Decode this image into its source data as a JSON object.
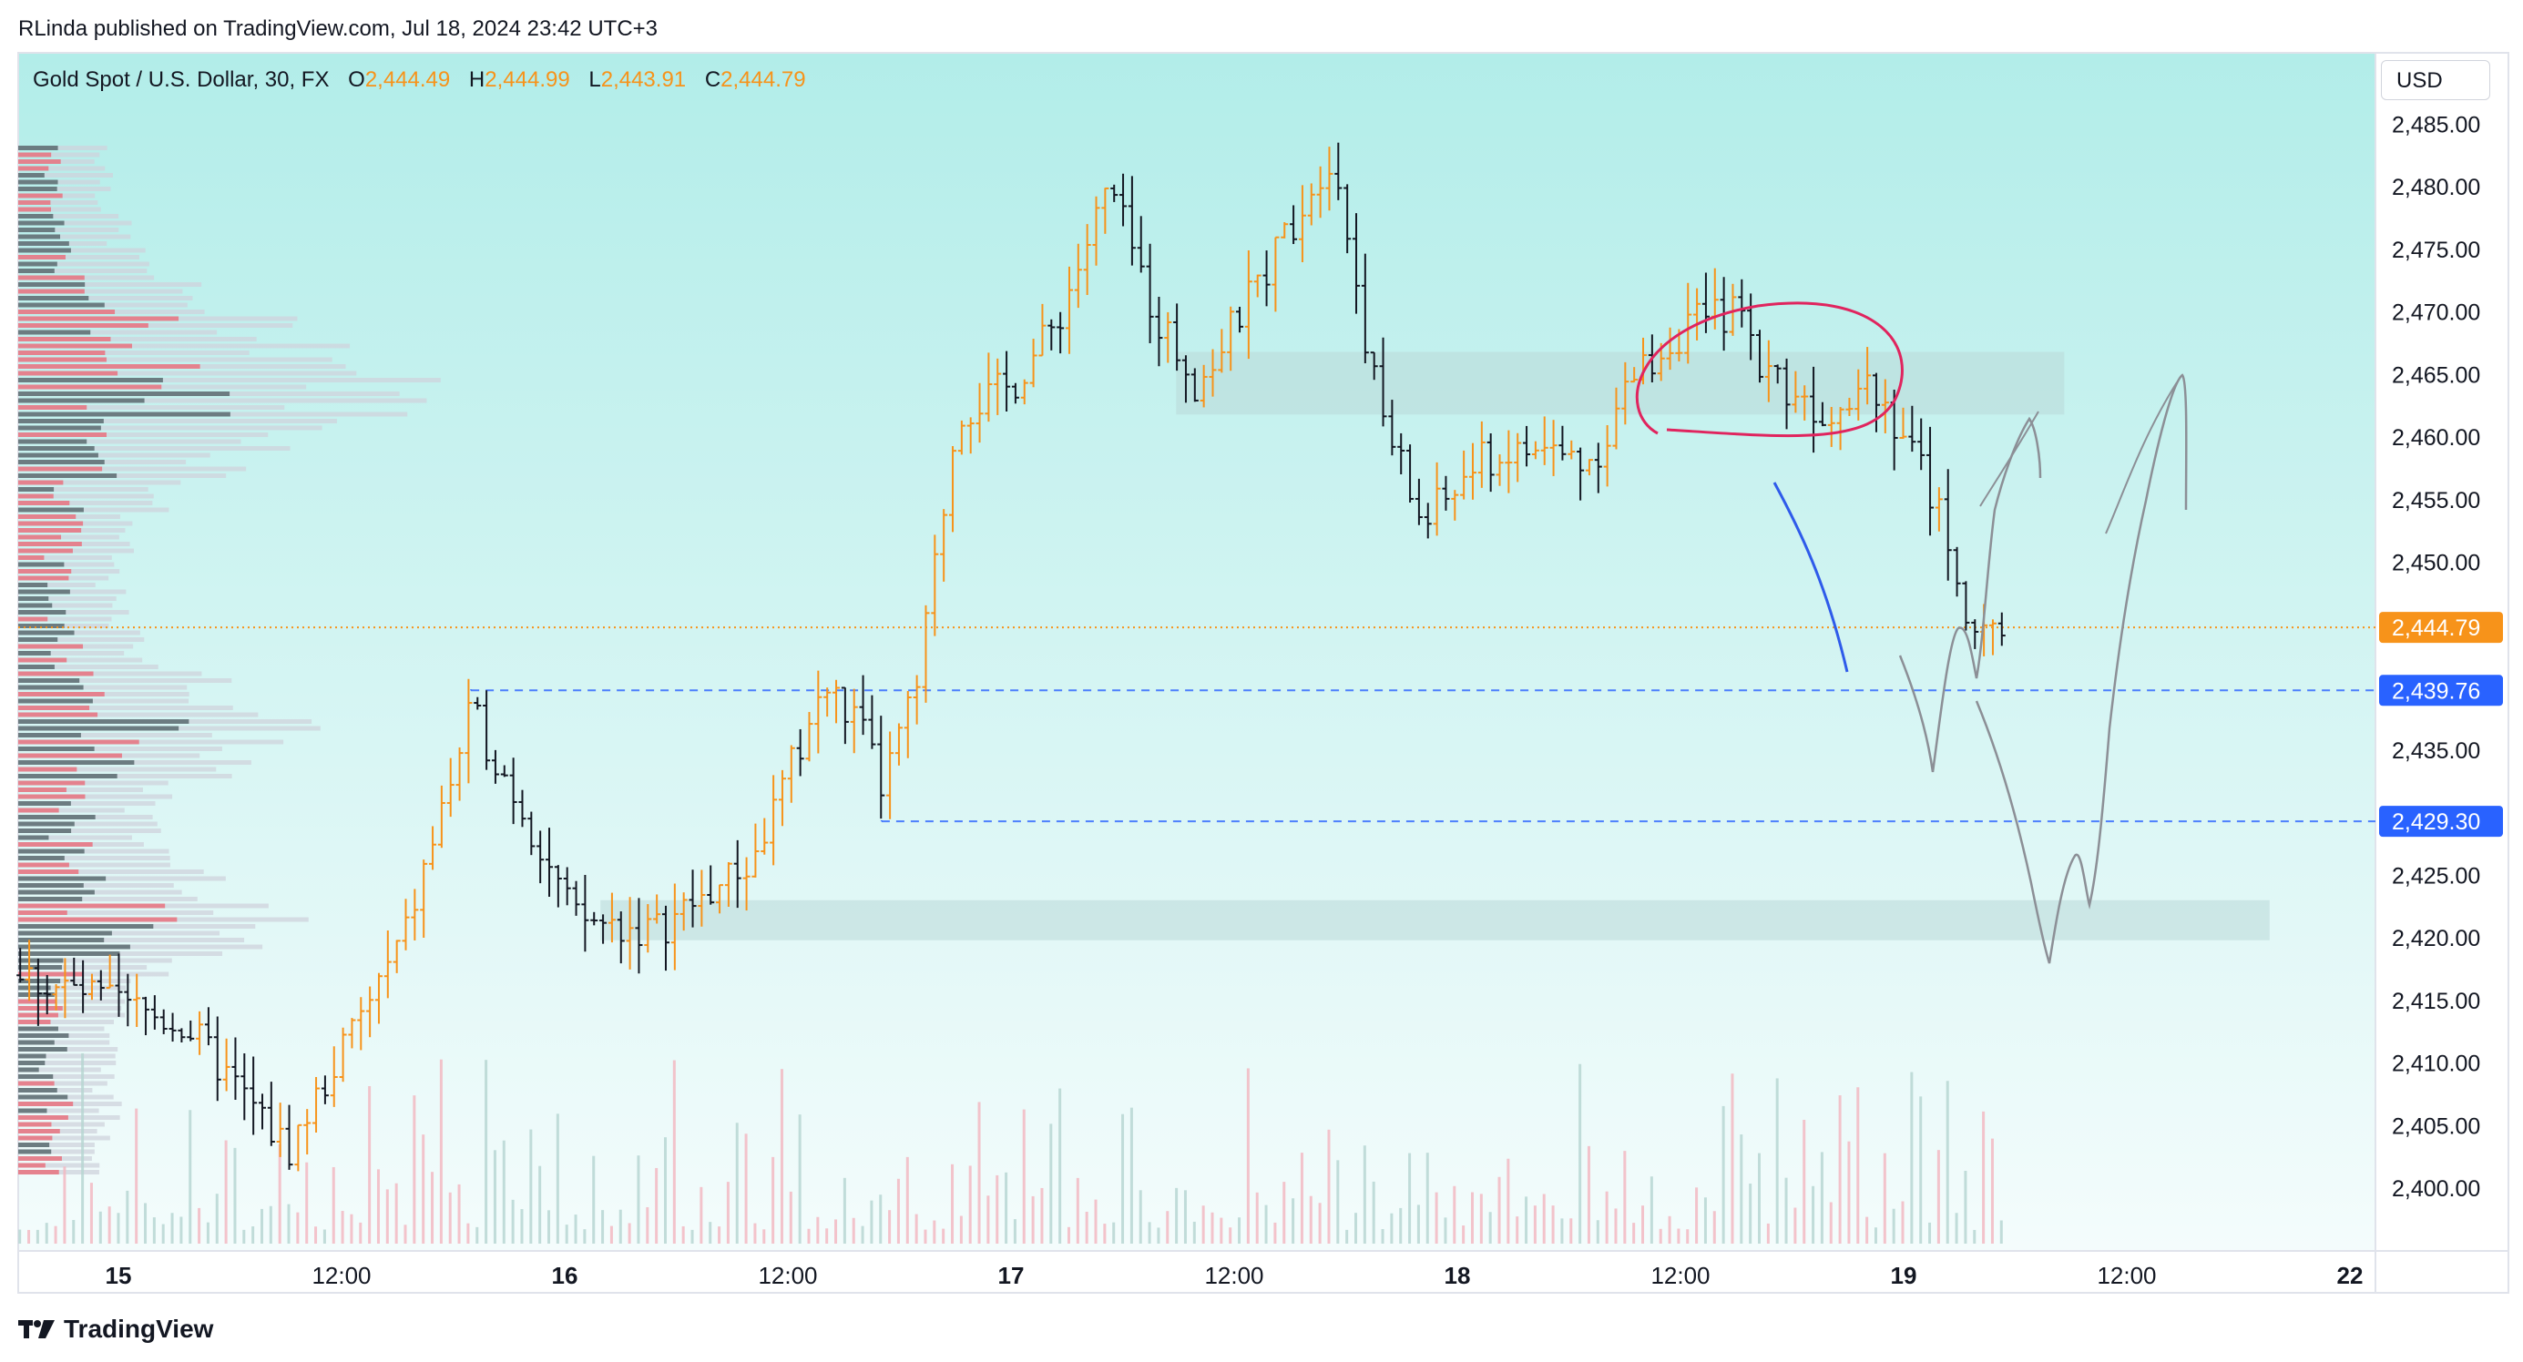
{
  "publisher_line": "RLinda published on TradingView.com, Jul 18, 2024 23:42 UTC+3",
  "symbol_title": "Gold Spot / U.S. Dollar, 30, FX",
  "ohlc": {
    "o_label": "O",
    "o": "2,444.49",
    "h_label": "H",
    "h": "2,444.99",
    "l_label": "L",
    "l": "2,443.91",
    "c_label": "C",
    "c": "2,444.79"
  },
  "currency_button": "USD",
  "brand": "TradingView",
  "colors": {
    "up": "#f7931a",
    "down": "#131722",
    "bg_top": "#b2ede9",
    "bg_bottom": "#f4fcfc",
    "zone": "#b9d8d8",
    "level": "#2962ff",
    "ellipse": "#e0245e",
    "sketch": "#8c8f96",
    "blue_curve": "#2f5bea"
  },
  "chart_data": {
    "type": "candlestick",
    "ylim": [
      2395,
      2490
    ],
    "y_ticks": [
      "2,485.00",
      "2,480.00",
      "2,475.00",
      "2,470.00",
      "2,465.00",
      "2,460.00",
      "2,455.00",
      "2,450.00",
      "2,445.00",
      "2,440.00",
      "2,435.00",
      "2,430.00",
      "2,425.00",
      "2,420.00",
      "2,415.00",
      "2,410.00",
      "2,405.00",
      "2,400.00"
    ],
    "x_ticks": [
      {
        "label": "15",
        "day": 0.0,
        "bold": true
      },
      {
        "label": "12:00",
        "day": 0.5,
        "bold": false
      },
      {
        "label": "16",
        "day": 1.0,
        "bold": true
      },
      {
        "label": "12:00",
        "day": 1.5,
        "bold": false
      },
      {
        "label": "17",
        "day": 2.0,
        "bold": true
      },
      {
        "label": "12:00",
        "day": 2.5,
        "bold": false
      },
      {
        "label": "18",
        "day": 3.0,
        "bold": true
      },
      {
        "label": "12:00",
        "day": 3.5,
        "bold": false
      },
      {
        "label": "19",
        "day": 4.0,
        "bold": true
      },
      {
        "label": "12:00",
        "day": 4.5,
        "bold": false
      },
      {
        "label": "22",
        "day": 5.0,
        "bold": true
      }
    ],
    "last_price": {
      "label": "2,444.79",
      "value": 2444.79
    },
    "levels": [
      {
        "label": "2,439.76",
        "value": 2439.76
      },
      {
        "label": "2,429.30",
        "value": 2429.3
      }
    ],
    "zones": [
      {
        "from": 2461.8,
        "to": 2466.8,
        "day_start": 2.37,
        "day_end": 4.36
      },
      {
        "from": 2419.8,
        "to": 2423.0,
        "day_start": 1.08,
        "day_end": 4.82
      }
    ],
    "anchors": [
      {
        "day": -0.22,
        "price": 2417
      },
      {
        "day": 0.15,
        "price": 2413
      },
      {
        "day": 0.38,
        "price": 2403
      },
      {
        "day": 0.64,
        "price": 2420
      },
      {
        "day": 0.79,
        "price": 2438
      },
      {
        "day": 0.91,
        "price": 2430
      },
      {
        "day": 1.02,
        "price": 2421.5
      },
      {
        "day": 1.2,
        "price": 2420.5
      },
      {
        "day": 1.42,
        "price": 2426
      },
      {
        "day": 1.58,
        "price": 2440
      },
      {
        "day": 1.66,
        "price": 2437
      },
      {
        "day": 1.71,
        "price": 2432
      },
      {
        "day": 1.79,
        "price": 2440
      },
      {
        "day": 1.88,
        "price": 2462
      },
      {
        "day": 2.0,
        "price": 2464
      },
      {
        "day": 2.1,
        "price": 2469
      },
      {
        "day": 2.22,
        "price": 2480
      },
      {
        "day": 2.32,
        "price": 2470
      },
      {
        "day": 2.42,
        "price": 2464
      },
      {
        "day": 2.58,
        "price": 2474
      },
      {
        "day": 2.72,
        "price": 2483
      },
      {
        "day": 2.82,
        "price": 2463
      },
      {
        "day": 2.92,
        "price": 2453
      },
      {
        "day": 3.05,
        "price": 2458
      },
      {
        "day": 3.18,
        "price": 2459
      },
      {
        "day": 3.3,
        "price": 2458
      },
      {
        "day": 3.4,
        "price": 2465
      },
      {
        "day": 3.52,
        "price": 2469
      },
      {
        "day": 3.62,
        "price": 2470
      },
      {
        "day": 3.7,
        "price": 2465
      },
      {
        "day": 3.82,
        "price": 2462
      },
      {
        "day": 3.92,
        "price": 2465
      },
      {
        "day": 4.02,
        "price": 2459
      },
      {
        "day": 4.1,
        "price": 2452
      },
      {
        "day": 4.16,
        "price": 2443
      },
      {
        "day": 4.22,
        "price": 2444.8
      }
    ]
  }
}
